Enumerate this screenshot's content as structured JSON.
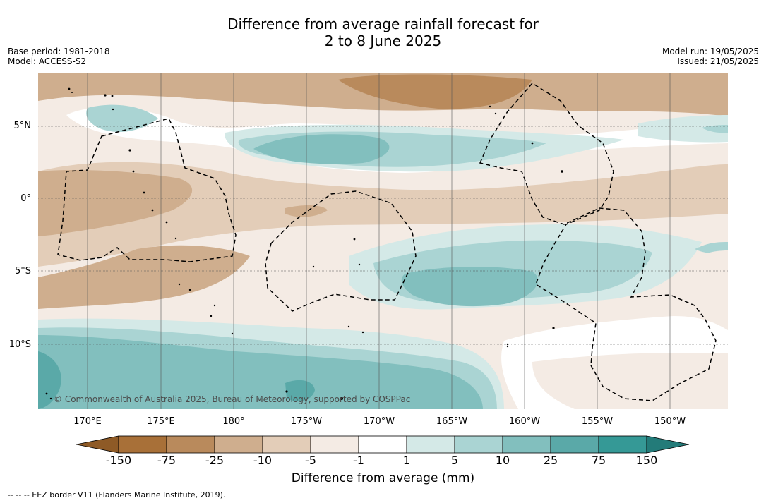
{
  "title": {
    "line1": "Difference from average rainfall forecast for",
    "line2": "2 to 8 June 2025"
  },
  "meta_left": {
    "base_period": "Base period: 1981-2018",
    "model": "Model: ACCESS-S2"
  },
  "meta_right": {
    "model_run": "Model run: 19/05/2025",
    "issued": "Issued: 21/05/2025"
  },
  "latitude_labels": [
    "5°N",
    "0°",
    "5°S",
    "10°S"
  ],
  "longitude_labels": [
    "170°E",
    "175°E",
    "180°",
    "175°W",
    "170°W",
    "165°W",
    "160°W",
    "155°W",
    "150°W"
  ],
  "copyright": "© Commonwealth of Australia 2025, Bureau of Meteorology, supported by COSPPac",
  "colorbar": {
    "title": "Difference from average (mm)",
    "ticks": [
      "-150",
      "-75",
      "-25",
      "-10",
      "-5",
      "-1",
      "1",
      "5",
      "10",
      "25",
      "75",
      "150"
    ],
    "colors": [
      "#a87038",
      "#b98a5c",
      "#cfae8e",
      "#e3cdb8",
      "#f4ebe4",
      "#ffffff",
      "#d4e9e7",
      "#aad4d3",
      "#82bfbe",
      "#5aa9a8",
      "#359996"
    ],
    "low_extend_color": "#8e5a26",
    "high_extend_color": "#237b79"
  },
  "legend_note": "--  --  -- EEZ border V11 (Flanders Marine Institute, 2019)."
}
